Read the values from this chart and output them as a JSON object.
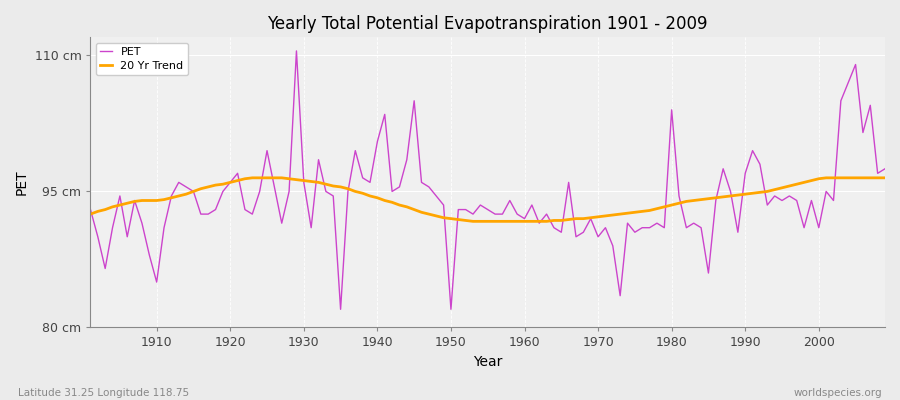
{
  "title": "Yearly Total Potential Evapotranspiration 1901 - 2009",
  "xlabel": "Year",
  "ylabel": "PET",
  "subtitle_left": "Latitude 31.25 Longitude 118.75",
  "subtitle_right": "worldspecies.org",
  "ylim": [
    80,
    112
  ],
  "yticks": [
    80,
    95,
    110
  ],
  "ytick_labels": [
    "80 cm",
    "95 cm",
    "110 cm"
  ],
  "xlim": [
    1901,
    2009
  ],
  "xticks": [
    1910,
    1920,
    1930,
    1940,
    1950,
    1960,
    1970,
    1980,
    1990,
    2000
  ],
  "pet_color": "#CC44CC",
  "trend_color": "#FFA500",
  "bg_color": "#EBEBEB",
  "plot_bg": "#F0F0F0",
  "grid_color": "#FFFFFF",
  "years": [
    1901,
    1902,
    1903,
    1904,
    1905,
    1906,
    1907,
    1908,
    1909,
    1910,
    1911,
    1912,
    1913,
    1914,
    1915,
    1916,
    1917,
    1918,
    1919,
    1920,
    1921,
    1922,
    1923,
    1924,
    1925,
    1926,
    1927,
    1928,
    1929,
    1930,
    1931,
    1932,
    1933,
    1934,
    1935,
    1936,
    1937,
    1938,
    1939,
    1940,
    1941,
    1942,
    1943,
    1944,
    1945,
    1946,
    1947,
    1948,
    1949,
    1950,
    1951,
    1952,
    1953,
    1954,
    1955,
    1956,
    1957,
    1958,
    1959,
    1960,
    1961,
    1962,
    1963,
    1964,
    1965,
    1966,
    1967,
    1968,
    1969,
    1970,
    1971,
    1972,
    1973,
    1974,
    1975,
    1976,
    1977,
    1978,
    1979,
    1980,
    1981,
    1982,
    1983,
    1984,
    1985,
    1986,
    1987,
    1988,
    1989,
    1990,
    1991,
    1992,
    1993,
    1994,
    1995,
    1996,
    1997,
    1998,
    1999,
    2000,
    2001,
    2002,
    2003,
    2004,
    2005,
    2006,
    2007,
    2008,
    2009
  ],
  "pet_values": [
    93.0,
    90.0,
    86.5,
    91.0,
    94.5,
    90.0,
    94.0,
    91.5,
    88.0,
    85.0,
    91.0,
    94.5,
    96.0,
    95.5,
    95.0,
    92.5,
    92.5,
    93.0,
    95.0,
    96.0,
    97.0,
    93.0,
    92.5,
    95.0,
    99.5,
    95.5,
    91.5,
    95.0,
    110.5,
    96.0,
    91.0,
    98.5,
    95.0,
    94.5,
    82.0,
    95.0,
    99.5,
    96.5,
    96.0,
    100.5,
    103.5,
    95.0,
    95.5,
    98.5,
    105.0,
    96.0,
    95.5,
    94.5,
    93.5,
    82.0,
    93.0,
    93.0,
    92.5,
    93.5,
    93.0,
    92.5,
    92.5,
    94.0,
    92.5,
    92.0,
    93.5,
    91.5,
    92.5,
    91.0,
    90.5,
    96.0,
    90.0,
    90.5,
    92.0,
    90.0,
    91.0,
    89.0,
    83.5,
    91.5,
    90.5,
    91.0,
    91.0,
    91.5,
    91.0,
    104.0,
    94.5,
    91.0,
    91.5,
    91.0,
    86.0,
    94.0,
    97.5,
    95.0,
    90.5,
    97.0,
    99.5,
    98.0,
    93.5,
    94.5,
    94.0,
    94.5,
    94.0,
    91.0,
    94.0,
    91.0,
    95.0,
    94.0,
    105.0,
    107.0,
    109.0,
    101.5,
    104.5,
    97.0,
    97.5
  ],
  "trend_years": [
    1901,
    1902,
    1903,
    1904,
    1905,
    1906,
    1907,
    1908,
    1909,
    1910,
    1911,
    1912,
    1913,
    1914,
    1915,
    1916,
    1917,
    1918,
    1919,
    1920,
    1921,
    1922,
    1923,
    1924,
    1925,
    1926,
    1927,
    1928,
    1929,
    1930,
    1931,
    1932,
    1933,
    1934,
    1935,
    1936,
    1937,
    1938,
    1939,
    1940,
    1941,
    1942,
    1943,
    1944,
    1945,
    1946,
    1947,
    1948,
    1949,
    1950,
    1951,
    1952,
    1953,
    1954,
    1955,
    1956,
    1957,
    1958,
    1959,
    1960,
    1961,
    1962,
    1963,
    1964,
    1965,
    1966,
    1967,
    1968,
    1969,
    1970,
    1971,
    1972,
    1973,
    1974,
    1975,
    1976,
    1977,
    1978,
    1979,
    1980,
    1981,
    1982,
    1983,
    1984,
    1985,
    1986,
    1987,
    1988,
    1989,
    1990,
    1991,
    1992,
    1993,
    1994,
    1995,
    1996,
    1997,
    1998,
    1999,
    2000,
    2001,
    2002,
    2003,
    2004,
    2005,
    2006,
    2007,
    2008,
    2009
  ],
  "trend_values": [
    92.5,
    92.8,
    93.0,
    93.3,
    93.5,
    93.7,
    93.9,
    94.0,
    94.0,
    94.0,
    94.1,
    94.3,
    94.5,
    94.7,
    95.0,
    95.3,
    95.5,
    95.7,
    95.8,
    96.0,
    96.2,
    96.4,
    96.5,
    96.5,
    96.5,
    96.5,
    96.5,
    96.4,
    96.3,
    96.2,
    96.1,
    96.0,
    95.8,
    95.6,
    95.5,
    95.3,
    95.0,
    94.8,
    94.5,
    94.3,
    94.0,
    93.8,
    93.5,
    93.3,
    93.0,
    92.7,
    92.5,
    92.3,
    92.1,
    92.0,
    91.9,
    91.8,
    91.7,
    91.7,
    91.7,
    91.7,
    91.7,
    91.7,
    91.7,
    91.7,
    91.7,
    91.7,
    91.7,
    91.8,
    91.8,
    91.9,
    92.0,
    92.0,
    92.1,
    92.2,
    92.3,
    92.4,
    92.5,
    92.6,
    92.7,
    92.8,
    92.9,
    93.1,
    93.3,
    93.5,
    93.7,
    93.9,
    94.0,
    94.1,
    94.2,
    94.3,
    94.4,
    94.5,
    94.6,
    94.7,
    94.8,
    94.9,
    95.0,
    95.2,
    95.4,
    95.6,
    95.8,
    96.0,
    96.2,
    96.4,
    96.5,
    96.5,
    96.5,
    96.5,
    96.5,
    96.5,
    96.5,
    96.5,
    96.5
  ]
}
